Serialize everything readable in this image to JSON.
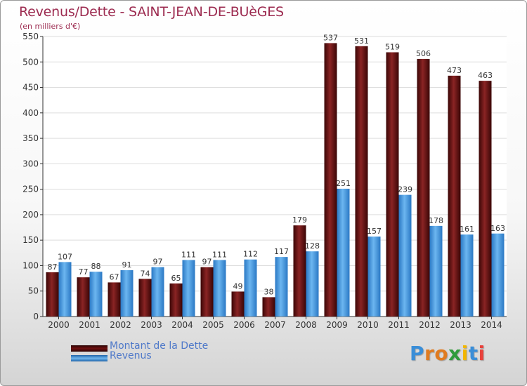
{
  "title": "Revenus/Dette - SAINT-JEAN-DE-BUèGES",
  "subtitle": "(en milliers d'€)",
  "colors": {
    "dette": "#6e1010",
    "revenus": "#3a8ed8",
    "title": "#9c2b50",
    "legend_text": "#4f79c9"
  },
  "chart_data": {
    "type": "bar",
    "title": "Revenus/Dette - SAINT-JEAN-DE-BUèGES",
    "ylabel": "(en milliers d'€)",
    "xlabel": "",
    "ylim": [
      0,
      550
    ],
    "yticks": [
      0,
      50,
      100,
      150,
      200,
      250,
      300,
      350,
      400,
      450,
      500,
      550
    ],
    "grid": true,
    "categories": [
      "2000",
      "2001",
      "2002",
      "2003",
      "2004",
      "2005",
      "2006",
      "2007",
      "2008",
      "2009",
      "2010",
      "2011",
      "2012",
      "2013",
      "2014"
    ],
    "series": [
      {
        "name": "Montant de la Dette",
        "values": [
          87,
          77,
          67,
          74,
          65,
          97,
          49,
          38,
          179,
          537,
          531,
          519,
          506,
          473,
          463
        ]
      },
      {
        "name": "Revenus",
        "values": [
          107,
          88,
          91,
          97,
          111,
          111,
          112,
          117,
          128,
          251,
          157,
          239,
          178,
          161,
          163
        ]
      }
    ],
    "legend": [
      "Montant de la Dette",
      "Revenus"
    ],
    "legend_position": "bottom-left"
  },
  "logo": {
    "letters": [
      "P",
      "r",
      "o",
      "x",
      "i",
      "t",
      "i"
    ],
    "colors": [
      "#3a8ed8",
      "#e07b20",
      "#e07b20",
      "#2f9b3b",
      "#f2b600",
      "#3a8ed8",
      "#e8423c"
    ]
  }
}
